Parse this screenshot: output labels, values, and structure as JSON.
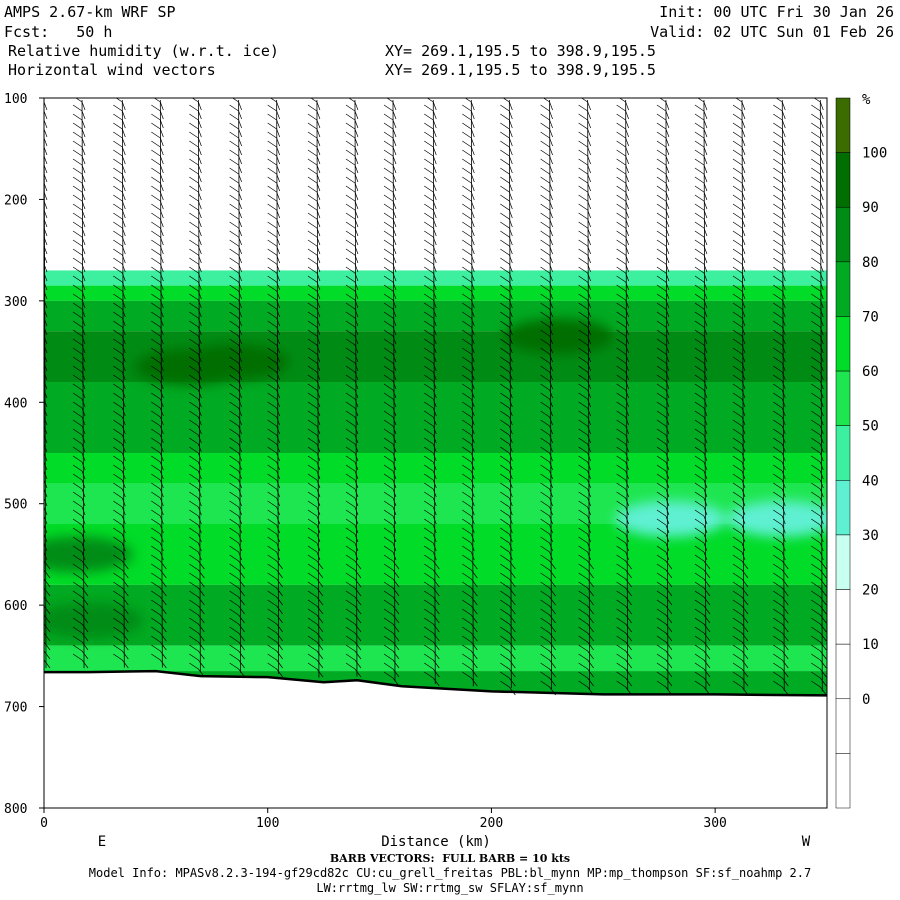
{
  "header": {
    "model_line": "AMPS 2.67-km WRF SP",
    "fcst_line": "Fcst:   50 h",
    "field1_line": "Relative humidity (w.r.t. ice)",
    "field2_line": "Horizontal wind vectors",
    "init_line": "Init: 00 UTC Fri 30 Jan 26",
    "valid_line": "Valid: 02 UTC Sun 01 Feb 26",
    "xy1_line": "XY= 269.1,195.5 to 398.9,195.5",
    "xy2_line": "XY= 269.1,195.5 to 398.9,195.5"
  },
  "footer": {
    "barb_line": "BARB VECTORS:  FULL BARB = 10 kts",
    "model_info_line": "Model Info: MPASv8.2.3-194-gf29cd82c CU:cu_grell_freitas PBL:bl_mynn MP:mp_thompson SF:sf_noahmp 2.7",
    "model_info_line2": "LW:rrtmg_lw SW:rrtmg_sw SFLAY:sf_mynn"
  },
  "chart_data": {
    "type": "heatmap",
    "title": "Relative humidity (w.r.t. ice)",
    "xlabel": "Distance (km)",
    "ylabel": "",
    "x_range": [
      0,
      350
    ],
    "y_range": [
      100,
      800
    ],
    "y_inverted": true,
    "x_ticks": [
      0,
      100,
      200,
      300
    ],
    "y_ticks": [
      100,
      200,
      300,
      400,
      500,
      600,
      700,
      800
    ],
    "x_end_labels": {
      "left": "E",
      "right": "W"
    },
    "colorbar": {
      "unit": "%",
      "levels": [
        0,
        10,
        20,
        30,
        40,
        50,
        60,
        70,
        80,
        90,
        100
      ],
      "colors": [
        "#ffffff",
        "#ffffff",
        "#ffffff",
        "#ffffff",
        "#c8fff0",
        "#5ff0d2",
        "#3cf0a0",
        "#1ee650",
        "#00dc28",
        "#00aa22",
        "#008c14",
        "#006e00",
        "#3c6b00"
      ]
    },
    "terrain_pressure": [
      [
        0,
        666
      ],
      [
        20,
        666
      ],
      [
        50,
        665
      ],
      [
        70,
        670
      ],
      [
        100,
        671
      ],
      [
        125,
        676
      ],
      [
        140,
        674
      ],
      [
        160,
        680
      ],
      [
        200,
        685
      ],
      [
        250,
        688
      ],
      [
        300,
        688
      ],
      [
        350,
        689
      ]
    ],
    "rh_bands": [
      {
        "p_top": 270,
        "p_bot": 285,
        "rh": 45
      },
      {
        "p_top": 285,
        "p_bot": 300,
        "rh": 65
      },
      {
        "p_top": 300,
        "p_bot": 330,
        "rh": 75
      },
      {
        "p_top": 330,
        "p_bot": 380,
        "rh": 85
      },
      {
        "p_top": 380,
        "p_bot": 450,
        "rh": 72
      },
      {
        "p_top": 450,
        "p_bot": 480,
        "rh": 60
      },
      {
        "p_top": 480,
        "p_bot": 520,
        "rh": 55
      },
      {
        "p_top": 520,
        "p_bot": 580,
        "rh": 62
      },
      {
        "p_top": 580,
        "p_bot": 640,
        "rh": 70
      },
      {
        "p_top": 640,
        "p_bot": 665,
        "rh": 55
      },
      {
        "p_top": 665,
        "p_bot": 690,
        "rh": 70
      }
    ],
    "rh_maxima": [
      {
        "x": 65,
        "p": 365,
        "rh": 92
      },
      {
        "x": 85,
        "p": 360,
        "rh": 95
      },
      {
        "x": 230,
        "p": 335,
        "rh": 92
      },
      {
        "x": 15,
        "p": 550,
        "rh": 82
      },
      {
        "x": 20,
        "p": 615,
        "rh": 82
      }
    ],
    "rh_minima": [
      {
        "x": 280,
        "p": 515,
        "rh": 35
      },
      {
        "x": 330,
        "p": 515,
        "rh": 30
      }
    ],
    "barb_columns_km": [
      0,
      17,
      35,
      52,
      69,
      87,
      104,
      122,
      139,
      156,
      174,
      191,
      208,
      226,
      243,
      260,
      278,
      295,
      312,
      330,
      347
    ]
  }
}
